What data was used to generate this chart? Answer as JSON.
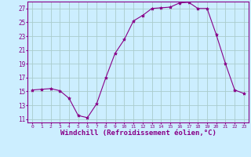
{
  "x_values": [
    0,
    1,
    2,
    3,
    4,
    5,
    6,
    7,
    8,
    9,
    10,
    11,
    12,
    13,
    14,
    15,
    16,
    17,
    18,
    19,
    20,
    21,
    22,
    23
  ],
  "y_values": [
    15.2,
    15.3,
    15.4,
    15.1,
    14.0,
    11.5,
    11.2,
    13.2,
    17.0,
    20.5,
    22.5,
    25.2,
    26.0,
    27.0,
    27.1,
    27.2,
    27.8,
    27.9,
    27.0,
    27.0,
    23.2,
    19.0,
    15.2,
    14.7
  ],
  "line_color": "#880088",
  "marker": "*",
  "marker_size": 3,
  "bg_color": "#cceeff",
  "grid_color": "#aacccc",
  "axis_color": "#880088",
  "tick_color": "#880088",
  "xlabel": "Windchill (Refroidissement éolien,°C)",
  "xlabel_fontsize": 6.5,
  "xlim": [
    -0.5,
    23.5
  ],
  "ylim": [
    10.5,
    28.0
  ],
  "xticks": [
    0,
    1,
    2,
    3,
    4,
    5,
    6,
    7,
    8,
    9,
    10,
    11,
    12,
    13,
    14,
    15,
    16,
    17,
    18,
    19,
    20,
    21,
    22,
    23
  ],
  "yticks": [
    11,
    13,
    15,
    17,
    19,
    21,
    23,
    25,
    27
  ]
}
